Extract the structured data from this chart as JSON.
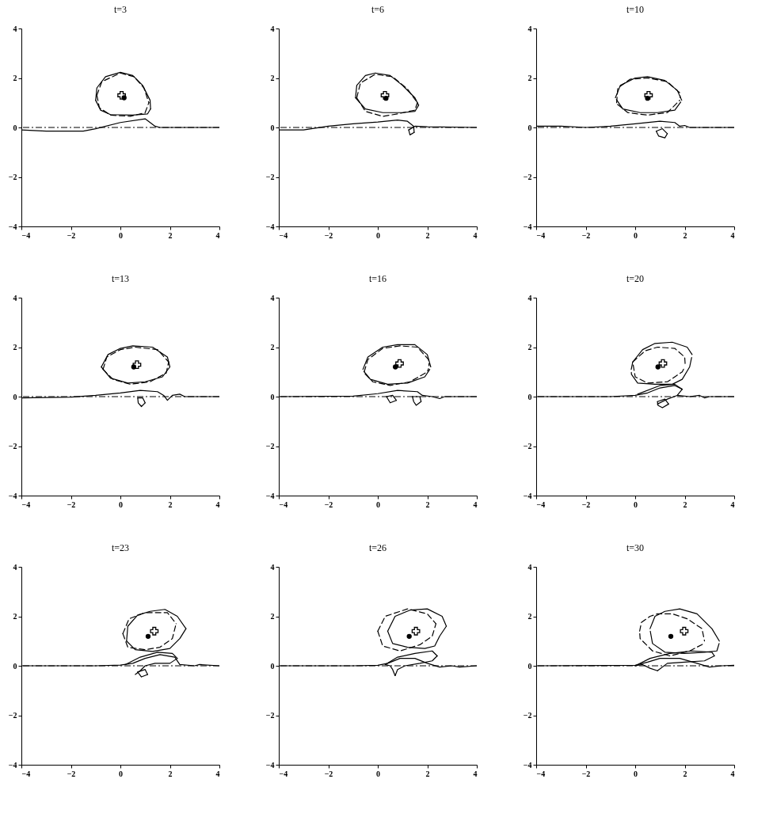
{
  "chart_data": [
    {
      "type": "line",
      "title": "t=3",
      "xlim": [
        -4,
        4
      ],
      "ylim": [
        -4,
        4
      ],
      "xticks": [
        -4,
        -2,
        0,
        2,
        4
      ],
      "yticks": [
        -4,
        -2,
        0,
        2,
        4
      ],
      "grid": false,
      "ref_lines": [
        {
          "axis": "y",
          "value": 0,
          "line_style": "dashed"
        }
      ],
      "series": [
        {
          "color": "#000000",
          "line_style": "solid",
          "x": [
            -1.0,
            -0.95,
            -0.6,
            0,
            0.5,
            0.9,
            1.2,
            1.22
          ],
          "values": [
            1.1,
            1.6,
            2.05,
            2.23,
            2.1,
            1.7,
            1.1,
            0.75
          ]
        },
        {
          "color": "#000000",
          "line_style": "solid",
          "x": [
            -1.0,
            -0.8,
            -0.4,
            0.5,
            1.1,
            1.22
          ],
          "values": [
            1.1,
            0.7,
            0.52,
            0.5,
            0.55,
            0.75
          ]
        },
        {
          "color": "#000000",
          "line_style": "dashed",
          "x": [
            -0.95,
            -0.75,
            0,
            0.55,
            0.95,
            1.15
          ],
          "values": [
            1.3,
            1.85,
            2.2,
            2.05,
            1.6,
            1.0
          ]
        },
        {
          "color": "#000000",
          "line_style": "dashed",
          "x": [
            -0.95,
            -0.85,
            -0.4,
            0.4,
            1.0,
            1.15
          ],
          "values": [
            1.3,
            0.8,
            0.5,
            0.45,
            0.6,
            1.0
          ]
        },
        {
          "color": "#000000",
          "line_style": "solid",
          "x": [
            -4,
            -3,
            -1.5,
            -1,
            0,
            1,
            1.4,
            1.6,
            4
          ],
          "values": [
            -0.1,
            -0.15,
            -0.15,
            -0.05,
            0.2,
            0.35,
            0.05,
            0,
            0
          ]
        },
        {
          "type": "scatter",
          "color": "#000000",
          "marker": "cross",
          "x": [
            0.05
          ],
          "values": [
            1.3
          ]
        },
        {
          "type": "scatter",
          "color": "#000000",
          "marker": "circle",
          "x": [
            0.15
          ],
          "values": [
            1.2
          ]
        }
      ]
    },
    {
      "type": "line",
      "title": "t=6",
      "xlim": [
        -4,
        4
      ],
      "ylim": [
        -4,
        4
      ],
      "xticks": [
        -4,
        -2,
        0,
        2,
        4
      ],
      "yticks": [
        -4,
        -2,
        0,
        2,
        4
      ],
      "grid": false,
      "ref_lines": [
        {
          "axis": "y",
          "value": 0,
          "line_style": "dashed"
        }
      ],
      "series": [
        {
          "color": "#000000",
          "line_style": "solid",
          "x": [
            -0.9,
            -0.85,
            -0.5,
            -0.1,
            0.5,
            1.0,
            1.5,
            1.65
          ],
          "values": [
            1.2,
            1.7,
            2.1,
            2.2,
            2.1,
            1.7,
            1.2,
            0.9
          ]
        },
        {
          "color": "#000000",
          "line_style": "solid",
          "x": [
            -0.9,
            -0.5,
            0.2,
            1.0,
            1.5,
            1.65
          ],
          "values": [
            1.2,
            0.75,
            0.6,
            0.6,
            0.65,
            0.9
          ]
        },
        {
          "color": "#000000",
          "line_style": "dashed",
          "x": [
            -0.85,
            -0.7,
            -0.1,
            0.6,
            1.2,
            1.6
          ],
          "values": [
            1.2,
            1.8,
            2.15,
            2.05,
            1.55,
            1.0
          ]
        },
        {
          "color": "#000000",
          "line_style": "dashed",
          "x": [
            -0.85,
            -0.5,
            0.2,
            0.8,
            1.5,
            1.6
          ],
          "values": [
            1.2,
            0.65,
            0.45,
            0.55,
            0.7,
            1.0
          ]
        },
        {
          "color": "#000000",
          "line_style": "solid",
          "x": [
            -4,
            -3,
            -2,
            -1,
            0,
            0.8,
            1.2,
            1.45,
            1.47
          ],
          "values": [
            -0.1,
            -0.1,
            0.05,
            0.15,
            0.22,
            0.3,
            0.25,
            0.05,
            -0.2
          ]
        },
        {
          "color": "#000000",
          "line_style": "solid",
          "x": [
            1.25,
            1.3,
            1.47
          ],
          "values": [
            -0.1,
            -0.3,
            -0.2
          ]
        },
        {
          "color": "#000000",
          "line_style": "solid",
          "x": [
            1.25,
            1.5,
            2,
            4
          ],
          "values": [
            -0.1,
            0.05,
            0.03,
            0
          ]
        },
        {
          "type": "scatter",
          "color": "#000000",
          "marker": "cross",
          "x": [
            0.29
          ],
          "values": [
            1.3
          ]
        },
        {
          "type": "scatter",
          "color": "#000000",
          "marker": "circle",
          "x": [
            0.33
          ],
          "values": [
            1.18
          ]
        }
      ]
    },
    {
      "type": "line",
      "title": "t=10",
      "xlim": [
        -4,
        4
      ],
      "ylim": [
        -4,
        4
      ],
      "xticks": [
        -4,
        -2,
        0,
        2,
        4
      ],
      "yticks": [
        -4,
        -2,
        0,
        2,
        4
      ],
      "grid": false,
      "ref_lines": [
        {
          "axis": "y",
          "value": 0,
          "line_style": "dashed"
        }
      ],
      "series": [
        {
          "color": "#000000",
          "line_style": "solid",
          "x": [
            -0.8,
            -0.6,
            0,
            0.5,
            1.2,
            1.7,
            1.88
          ],
          "values": [
            1.2,
            1.7,
            2.0,
            2.05,
            1.9,
            1.5,
            1.1
          ]
        },
        {
          "color": "#000000",
          "line_style": "solid",
          "x": [
            -0.76,
            -0.5,
            0.2,
            0.9,
            1.6,
            1.84
          ],
          "values": [
            1.13,
            0.75,
            0.6,
            0.6,
            0.7,
            1.03
          ]
        },
        {
          "color": "#000000",
          "line_style": "dashed",
          "x": [
            -0.75,
            -0.7,
            -0.2,
            0.5,
            1.3,
            1.8,
            1.82
          ],
          "values": [
            1.0,
            1.6,
            1.95,
            2.0,
            1.85,
            1.4,
            1.2
          ]
        },
        {
          "color": "#000000",
          "line_style": "dashed",
          "x": [
            -0.71,
            -0.3,
            0.5,
            1.3,
            1.8
          ],
          "values": [
            0.93,
            0.6,
            0.5,
            0.6,
            1.1
          ]
        },
        {
          "color": "#000000",
          "line_style": "solid",
          "x": [
            -4,
            -3,
            -2,
            -1,
            0,
            1,
            1.6,
            1.8,
            2,
            2.2,
            4
          ],
          "values": [
            0.05,
            0.05,
            0,
            0.05,
            0.15,
            0.25,
            0.2,
            0.05,
            0.08,
            0,
            0
          ]
        },
        {
          "color": "#000000",
          "line_style": "solid",
          "x": [
            0.85,
            1.1,
            1.3
          ],
          "values": [
            -0.15,
            -0.05,
            -0.25
          ]
        },
        {
          "color": "#000000",
          "line_style": "solid",
          "x": [
            0.85,
            0.95,
            1.2,
            1.3
          ],
          "values": [
            -0.15,
            -0.35,
            -0.42,
            -0.25
          ]
        },
        {
          "type": "scatter",
          "color": "#000000",
          "marker": "cross",
          "x": [
            0.54
          ],
          "values": [
            1.3
          ]
        },
        {
          "type": "scatter",
          "color": "#000000",
          "marker": "circle",
          "x": [
            0.5
          ],
          "values": [
            1.18
          ]
        }
      ]
    },
    {
      "type": "line",
      "title": "t=13",
      "xlim": [
        -4,
        4
      ],
      "ylim": [
        -4,
        4
      ],
      "xticks": [
        -4,
        -2,
        0,
        2,
        4
      ],
      "yticks": [
        -4,
        -2,
        0,
        2,
        4
      ],
      "grid": false,
      "ref_lines": [
        {
          "axis": "y",
          "value": 0,
          "line_style": "dashed"
        }
      ],
      "series": [
        {
          "color": "#000000",
          "line_style": "solid",
          "x": [
            -0.77,
            -0.5,
            0,
            0.5,
            1.3,
            1.9,
            2.0
          ],
          "values": [
            1.2,
            1.7,
            1.95,
            2.05,
            2.0,
            1.6,
            1.2
          ]
        },
        {
          "color": "#000000",
          "line_style": "solid",
          "x": [
            -0.77,
            -0.4,
            0.3,
            1.0,
            1.7,
            2.0
          ],
          "values": [
            1.2,
            0.75,
            0.55,
            0.6,
            0.8,
            1.2
          ]
        },
        {
          "color": "#000000",
          "line_style": "dashed",
          "x": [
            -0.7,
            -0.55,
            0,
            0.6,
            1.5,
            1.95
          ],
          "values": [
            1.1,
            1.6,
            1.9,
            2.0,
            1.9,
            1.4
          ]
        },
        {
          "color": "#000000",
          "line_style": "dashed",
          "x": [
            -0.7,
            -0.3,
            0.4,
            1.2,
            1.85,
            1.95
          ],
          "values": [
            1.1,
            0.7,
            0.5,
            0.6,
            0.95,
            1.4
          ]
        },
        {
          "color": "#000000",
          "line_style": "solid",
          "x": [
            -4,
            -2,
            -1,
            0,
            0.8,
            1.5,
            1.75,
            1.9,
            2.1,
            2.4,
            2.6,
            4
          ],
          "values": [
            -0.05,
            -0.02,
            0.05,
            0.15,
            0.25,
            0.2,
            0.05,
            -0.15,
            0.05,
            0.1,
            0,
            0
          ]
        },
        {
          "color": "#000000",
          "line_style": "solid",
          "x": [
            0.7,
            0.9,
            1.0
          ],
          "values": [
            -0.05,
            -0.05,
            -0.25
          ]
        },
        {
          "color": "#000000",
          "line_style": "solid",
          "x": [
            0.7,
            0.72,
            0.85,
            1.0
          ],
          "values": [
            -0.05,
            -0.25,
            -0.4,
            -0.25
          ]
        },
        {
          "type": "scatter",
          "color": "#000000",
          "marker": "cross",
          "x": [
            0.67
          ],
          "values": [
            1.29
          ]
        },
        {
          "type": "scatter",
          "color": "#000000",
          "marker": "circle",
          "x": [
            0.54
          ],
          "values": [
            1.2
          ]
        }
      ]
    },
    {
      "type": "line",
      "title": "t=16",
      "xlim": [
        -4,
        4
      ],
      "ylim": [
        -4,
        4
      ],
      "xticks": [
        -4,
        -2,
        0,
        2,
        4
      ],
      "yticks": [
        -4,
        -2,
        0,
        2,
        4
      ],
      "grid": false,
      "ref_lines": [
        {
          "axis": "y",
          "value": 0,
          "line_style": "dashed"
        }
      ],
      "series": [
        {
          "color": "#000000",
          "line_style": "solid",
          "x": [
            -0.6,
            -0.4,
            0.2,
            0.8,
            1.5,
            2.0,
            2.14
          ],
          "values": [
            1.1,
            1.6,
            2.0,
            2.1,
            2.1,
            1.7,
            1.2
          ]
        },
        {
          "color": "#000000",
          "line_style": "solid",
          "x": [
            -0.56,
            -0.3,
            0.4,
            1.2,
            1.9,
            2.1
          ],
          "values": [
            1.02,
            0.7,
            0.5,
            0.55,
            0.8,
            1.1
          ]
        },
        {
          "color": "#000000",
          "line_style": "dashed",
          "x": [
            -0.55,
            -0.4,
            0.2,
            0.9,
            1.6,
            2.05,
            2.07
          ],
          "values": [
            1.0,
            1.5,
            1.95,
            2.05,
            2.0,
            1.5,
            1.25
          ]
        },
        {
          "color": "#000000",
          "line_style": "dashed",
          "x": [
            -0.51,
            -0.2,
            0.5,
            1.3,
            2.0,
            2.05
          ],
          "values": [
            0.92,
            0.6,
            0.45,
            0.6,
            1.0,
            1.13
          ]
        },
        {
          "color": "#000000",
          "line_style": "solid",
          "x": [
            -4,
            -1,
            0,
            0.8,
            1.6,
            1.8,
            2.2,
            2.5,
            2.7,
            4
          ],
          "values": [
            0,
            0.02,
            0.12,
            0.25,
            0.2,
            0.05,
            0,
            -0.08,
            0,
            0
          ]
        },
        {
          "color": "#000000",
          "line_style": "solid",
          "x": [
            0.35,
            0.6,
            0.75
          ],
          "values": [
            0.0,
            0.05,
            -0.15
          ]
        },
        {
          "color": "#000000",
          "line_style": "solid",
          "x": [
            0.35,
            0.5,
            0.75
          ],
          "values": [
            0.0,
            -0.25,
            -0.15
          ]
        },
        {
          "color": "#000000",
          "line_style": "solid",
          "x": [
            1.4,
            1.7,
            1.75
          ],
          "values": [
            0.0,
            0.0,
            -0.2
          ]
        },
        {
          "color": "#000000",
          "line_style": "solid",
          "x": [
            1.4,
            1.45,
            1.55,
            1.75
          ],
          "values": [
            0.0,
            -0.2,
            -0.35,
            -0.2
          ]
        },
        {
          "type": "scatter",
          "color": "#000000",
          "marker": "cross",
          "x": [
            0.88
          ],
          "values": [
            1.34
          ]
        },
        {
          "type": "scatter",
          "color": "#000000",
          "marker": "circle",
          "x": [
            0.71
          ],
          "values": [
            1.2
          ]
        }
      ]
    },
    {
      "type": "line",
      "title": "t=20",
      "xlim": [
        -4,
        4
      ],
      "ylim": [
        -4,
        4
      ],
      "xticks": [
        -4,
        -2,
        0,
        2,
        4
      ],
      "yticks": [
        -4,
        -2,
        0,
        2,
        4
      ],
      "grid": false,
      "ref_lines": [
        {
          "axis": "y",
          "value": 0,
          "line_style": "dashed"
        }
      ],
      "series": [
        {
          "color": "#000000",
          "line_style": "solid",
          "x": [
            -0.16,
            -0.1,
            0.3,
            0.8,
            1.5,
            2.1,
            2.3
          ],
          "values": [
            1.1,
            1.4,
            1.9,
            2.15,
            2.2,
            2.0,
            1.7
          ]
        },
        {
          "color": "#000000",
          "line_style": "solid",
          "x": [
            -0.155,
            -0.15,
            0.1,
            0.8,
            1.5,
            1.9,
            2.2,
            2.28
          ],
          "values": [
            0.98,
            0.9,
            0.55,
            0.5,
            0.5,
            0.7,
            1.2,
            1.58
          ]
        },
        {
          "color": "#000000",
          "line_style": "dashed",
          "x": [
            -0.1,
            0.4,
            0.9,
            1.6,
            2.0,
            2.02
          ],
          "values": [
            1.4,
            1.85,
            2.0,
            1.95,
            1.6,
            1.3
          ]
        },
        {
          "color": "#000000",
          "line_style": "dashed",
          "x": [
            -0.08,
            0,
            0.5,
            1.3,
            1.9,
            2.0
          ],
          "values": [
            1.28,
            0.8,
            0.55,
            0.6,
            1.0,
            1.2
          ]
        },
        {
          "color": "#000000",
          "line_style": "solid",
          "x": [
            -4,
            -1,
            0,
            0.5,
            1.0,
            1.6,
            1.9
          ],
          "values": [
            0,
            0,
            0.05,
            0.15,
            0.35,
            0.45,
            0.3
          ]
        },
        {
          "color": "#000000",
          "line_style": "solid",
          "x": [
            1.7,
            2.2,
            2.6,
            2.8,
            3,
            4
          ],
          "values": [
            0.05,
            0.0,
            0.05,
            -0.05,
            0,
            0
          ]
        },
        {
          "color": "#000000",
          "line_style": "solid",
          "x": [
            0.1,
            1.0,
            1.6,
            1.9
          ],
          "values": [
            0.1,
            0.45,
            0.5,
            0.3
          ]
        },
        {
          "color": "#000000",
          "line_style": "solid",
          "x": [
            0.9,
            1.3,
            1.7,
            1.9
          ],
          "values": [
            -0.3,
            -0.1,
            0.05,
            0.3
          ]
        },
        {
          "color": "#000000",
          "line_style": "solid",
          "x": [
            0.9,
            1.2,
            1.35
          ],
          "values": [
            -0.2,
            -0.1,
            -0.3
          ]
        },
        {
          "color": "#000000",
          "line_style": "solid",
          "x": [
            0.9,
            0.92,
            1.1,
            1.35
          ],
          "values": [
            -0.2,
            -0.35,
            -0.45,
            -0.3
          ]
        },
        {
          "type": "scatter",
          "color": "#000000",
          "marker": "cross",
          "x": [
            1.12
          ],
          "values": [
            1.34
          ]
        },
        {
          "type": "scatter",
          "color": "#000000",
          "marker": "circle",
          "x": [
            0.92
          ],
          "values": [
            1.2
          ]
        }
      ]
    },
    {
      "type": "line",
      "title": "t=23",
      "xlim": [
        -4,
        4
      ],
      "ylim": [
        -4,
        4
      ],
      "xticks": [
        -4,
        -2,
        0,
        2,
        4
      ],
      "yticks": [
        -4,
        -2,
        0,
        2,
        4
      ],
      "grid": false,
      "ref_lines": [
        {
          "axis": "y",
          "value": 0,
          "line_style": "dashed"
        }
      ],
      "series": [
        {
          "color": "#000000",
          "line_style": "solid",
          "x": [
            0.25,
            0.3,
            0.7,
            1.2,
            1.8,
            2.3,
            2.65
          ],
          "values": [
            1.0,
            1.6,
            2.05,
            2.2,
            2.28,
            2.0,
            1.5
          ]
        },
        {
          "color": "#000000",
          "line_style": "solid",
          "x": [
            0.25,
            0.6,
            1.3,
            2.0,
            2.4,
            2.65
          ],
          "values": [
            1.0,
            0.65,
            0.58,
            0.7,
            1.1,
            1.5
          ]
        },
        {
          "color": "#000000",
          "line_style": "dashed",
          "x": [
            0.1,
            0.35,
            1.0,
            1.9,
            2.25
          ],
          "values": [
            1.3,
            1.9,
            2.15,
            2.15,
            1.7
          ]
        },
        {
          "color": "#000000",
          "line_style": "dashed",
          "x": [
            0.1,
            0.3,
            1.0,
            1.6,
            2.1,
            2.25
          ],
          "values": [
            1.3,
            0.75,
            0.65,
            0.75,
            1.1,
            1.7
          ]
        },
        {
          "color": "#000000",
          "line_style": "solid",
          "x": [
            -4,
            -1,
            0,
            0.5,
            1.0,
            1.6,
            2.2,
            2.4,
            3.0,
            3.2,
            4
          ],
          "values": [
            0,
            0,
            0.03,
            0.1,
            0.3,
            0.45,
            0.35,
            0.05,
            0,
            0.05,
            0
          ]
        },
        {
          "color": "#000000",
          "line_style": "solid",
          "x": [
            0.2,
            0.8,
            1.5,
            2.1,
            2.3
          ],
          "values": [
            0.05,
            0.35,
            0.55,
            0.5,
            0.3
          ]
        },
        {
          "color": "#000000",
          "line_style": "solid",
          "x": [
            0.6,
            0.8,
            1.0,
            1.4,
            2.0,
            2.3
          ],
          "values": [
            -0.35,
            -0.2,
            0.0,
            0.1,
            0.1,
            0.3
          ]
        },
        {
          "color": "#000000",
          "line_style": "solid",
          "x": [
            0.7,
            1.0,
            1.1
          ],
          "values": [
            -0.25,
            -0.15,
            -0.35
          ]
        },
        {
          "color": "#000000",
          "line_style": "solid",
          "x": [
            0.7,
            0.85,
            1.1
          ],
          "values": [
            -0.25,
            -0.45,
            -0.35
          ]
        },
        {
          "type": "scatter",
          "color": "#000000",
          "marker": "cross",
          "x": [
            1.37
          ],
          "values": [
            1.4
          ]
        },
        {
          "type": "scatter",
          "color": "#000000",
          "marker": "circle",
          "x": [
            1.12
          ],
          "values": [
            1.19
          ]
        }
      ]
    },
    {
      "type": "line",
      "title": "t=26",
      "xlim": [
        -4,
        4
      ],
      "ylim": [
        -4,
        4
      ],
      "xticks": [
        -4,
        -2,
        0,
        2,
        4
      ],
      "yticks": [
        -4,
        -2,
        0,
        2,
        4
      ],
      "grid": false,
      "ref_lines": [
        {
          "axis": "y",
          "value": 0,
          "line_style": "dashed"
        }
      ],
      "series": [
        {
          "color": "#000000",
          "line_style": "solid",
          "x": [
            0.4,
            0.7,
            1.3,
            2.0,
            2.6,
            2.77
          ],
          "values": [
            1.4,
            2.0,
            2.25,
            2.3,
            2.0,
            1.6
          ]
        },
        {
          "color": "#000000",
          "line_style": "solid",
          "x": [
            0.4,
            0.6,
            1.2,
            1.9,
            2.3,
            2.5,
            2.77
          ],
          "values": [
            1.4,
            0.9,
            0.75,
            0.7,
            0.8,
            1.2,
            1.6
          ]
        },
        {
          "color": "#000000",
          "line_style": "dashed",
          "x": [
            0.0,
            0.3,
            1.2,
            2.0,
            2.35
          ],
          "values": [
            1.4,
            2.0,
            2.3,
            2.1,
            1.7
          ]
        },
        {
          "color": "#000000",
          "line_style": "dashed",
          "x": [
            0.0,
            0.2,
            0.9,
            1.7,
            2.2,
            2.35
          ],
          "values": [
            1.4,
            0.8,
            0.6,
            0.85,
            1.2,
            1.7
          ]
        },
        {
          "color": "#000000",
          "line_style": "solid",
          "x": [
            -4,
            -1,
            0,
            0.4,
            0.9,
            1.5,
            2.0,
            2.5,
            3.0,
            3.3,
            4
          ],
          "values": [
            0,
            0,
            0.02,
            0.1,
            0.3,
            0.3,
            0.1,
            -0.05,
            0,
            -0.05,
            0
          ]
        },
        {
          "color": "#000000",
          "line_style": "solid",
          "x": [
            0.3,
            0.8,
            1.5,
            2.2,
            2.4
          ],
          "values": [
            0.05,
            0.35,
            0.5,
            0.6,
            0.4
          ]
        },
        {
          "color": "#000000",
          "line_style": "solid",
          "x": [
            0.7,
            0.8,
            1.1,
            1.7,
            2.2,
            2.4
          ],
          "values": [
            -0.4,
            -0.15,
            0.0,
            0.1,
            0.2,
            0.4
          ]
        },
        {
          "color": "#000000",
          "line_style": "solid",
          "x": [
            0.3,
            0.5,
            0.6,
            0.7
          ],
          "values": [
            0.05,
            0.0,
            -0.15,
            -0.4
          ]
        },
        {
          "type": "scatter",
          "color": "#000000",
          "marker": "cross",
          "x": [
            1.54
          ],
          "values": [
            1.4
          ]
        },
        {
          "type": "scatter",
          "color": "#000000",
          "marker": "circle",
          "x": [
            1.27
          ],
          "values": [
            1.19
          ]
        }
      ]
    },
    {
      "type": "line",
      "title": "t=30",
      "xlim": [
        -4,
        4
      ],
      "ylim": [
        -4,
        4
      ],
      "xticks": [
        -4,
        -2,
        0,
        2,
        4
      ],
      "yticks": [
        -4,
        -2,
        0,
        2,
        4
      ],
      "grid": false,
      "ref_lines": [
        {
          "axis": "y",
          "value": 0,
          "line_style": "dashed"
        }
      ],
      "series": [
        {
          "color": "#000000",
          "line_style": "solid",
          "x": [
            0.6,
            0.8,
            1.2,
            1.8,
            2.5,
            3.1,
            3.4
          ],
          "values": [
            1.5,
            2.0,
            2.2,
            2.3,
            2.1,
            1.5,
            1.0
          ]
        },
        {
          "color": "#000000",
          "line_style": "solid",
          "x": [
            0.61,
            0.7,
            1.2,
            2.0,
            2.8,
            3.3,
            3.39
          ],
          "values": [
            1.4,
            0.9,
            0.55,
            0.5,
            0.55,
            0.6,
            0.9
          ]
        },
        {
          "color": "#000000",
          "line_style": "dashed",
          "x": [
            0.18,
            0.25,
            0.6,
            0.9,
            1.5,
            2.1,
            2.7,
            2.8
          ],
          "values": [
            1.4,
            1.75,
            2.0,
            2.1,
            2.1,
            1.9,
            1.5,
            1.0
          ]
        },
        {
          "color": "#000000",
          "line_style": "dashed",
          "x": [
            0.185,
            0.2,
            0.7,
            1.4,
            2.2,
            2.78
          ],
          "values": [
            1.3,
            1.1,
            0.6,
            0.4,
            0.6,
            0.9
          ]
        },
        {
          "color": "#000000",
          "line_style": "solid",
          "x": [
            -4,
            0,
            0.5,
            1.0,
            1.8,
            2.5,
            3.0,
            3.5,
            4
          ],
          "values": [
            0,
            0.02,
            0.15,
            0.3,
            0.3,
            0.1,
            -0.05,
            0.0,
            0.02
          ]
        },
        {
          "color": "#000000",
          "line_style": "solid",
          "x": [
            0.0,
            0.6,
            1.4,
            2.3,
            3.1,
            3.2
          ],
          "values": [
            0.0,
            0.3,
            0.5,
            0.6,
            0.55,
            0.4
          ]
        },
        {
          "color": "#000000",
          "line_style": "solid",
          "x": [
            0.9,
            1.3,
            2.0,
            2.8,
            3.2
          ],
          "values": [
            -0.2,
            0.1,
            0.15,
            0.2,
            0.4
          ]
        },
        {
          "color": "#000000",
          "line_style": "solid",
          "x": [
            0.0,
            0.3,
            0.6,
            0.9
          ],
          "values": [
            0.0,
            0.05,
            -0.1,
            -0.2
          ]
        },
        {
          "type": "scatter",
          "color": "#000000",
          "marker": "cross",
          "x": [
            1.98
          ],
          "values": [
            1.4
          ]
        },
        {
          "type": "scatter",
          "color": "#000000",
          "marker": "circle",
          "x": [
            1.44
          ],
          "values": [
            1.19
          ]
        }
      ]
    }
  ]
}
